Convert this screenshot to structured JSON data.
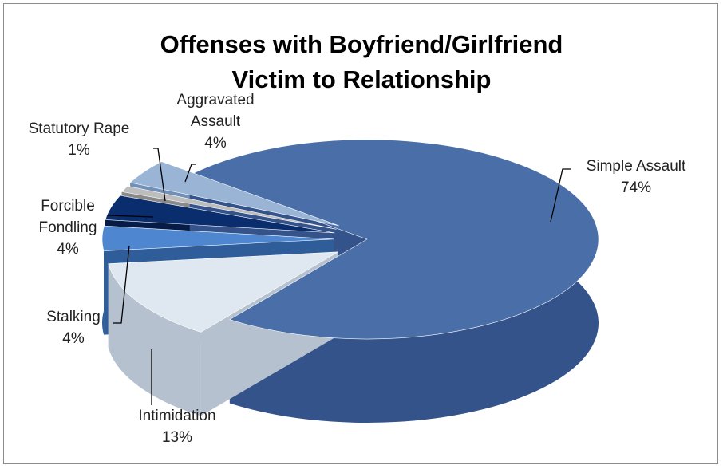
{
  "chart_data": {
    "type": "pie",
    "title": "Offenses with Boyfriend/Girlfriend Victim to Relationship",
    "categories": [
      "Simple Assault",
      "Intimidation",
      "Stalking",
      "Forcible Fondling",
      "Statutory Rape",
      "Aggravated Assault"
    ],
    "values": [
      74,
      13,
      4,
      4,
      1,
      4
    ],
    "value_labels": [
      "74%",
      "13%",
      "4%",
      "4%",
      "1%",
      "4%"
    ],
    "colors": [
      "#4a6fa8",
      "#dfe7f1",
      "#4f86d0",
      "#0a2d6e",
      "#bdbdbd",
      "#9ab4d6"
    ],
    "side_colors": [
      "#34538a",
      "#b5c1cf",
      "#2f5d99",
      "#061c47",
      "#8a8a8a",
      "#7190b8"
    ]
  }
}
